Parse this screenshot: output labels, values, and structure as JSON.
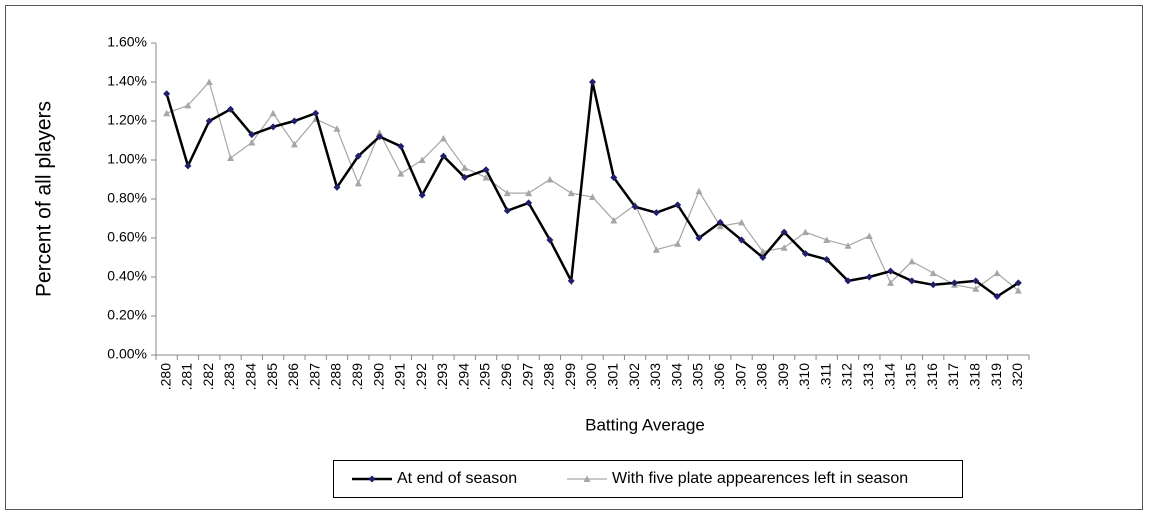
{
  "chart_data": {
    "type": "line",
    "x_label": "Batting Average",
    "y_label": "Percent of all players",
    "categories": [
      ".280",
      ".281",
      ".282",
      ".283",
      ".284",
      ".285",
      ".286",
      ".287",
      ".288",
      ".289",
      ".290",
      ".291",
      ".292",
      ".293",
      ".294",
      ".295",
      ".296",
      ".297",
      ".298",
      ".299",
      ".300",
      ".301",
      ".302",
      ".303",
      ".304",
      ".305",
      ".306",
      ".307",
      ".308",
      ".309",
      ".310",
      ".311",
      ".312",
      ".313",
      ".314",
      ".315",
      ".316",
      ".317",
      ".318",
      ".319",
      ".320"
    ],
    "series": [
      {
        "name": "At end of season",
        "color": "#000000",
        "marker_color": "#1f1f6e",
        "values": [
          1.34,
          0.97,
          1.2,
          1.26,
          1.13,
          1.17,
          1.2,
          1.24,
          0.86,
          1.02,
          1.12,
          1.07,
          0.82,
          1.02,
          0.91,
          0.95,
          0.74,
          0.78,
          0.59,
          0.38,
          1.4,
          0.91,
          0.76,
          0.73,
          0.77,
          0.6,
          0.68,
          0.59,
          0.5,
          0.63,
          0.52,
          0.49,
          0.38,
          0.4,
          0.43,
          0.38,
          0.36,
          0.37,
          0.38,
          0.3,
          0.37
        ]
      },
      {
        "name": "With five plate appearences left in season",
        "color": "#a6a6a6",
        "marker_color": "#a6a6a6",
        "values": [
          1.24,
          1.28,
          1.4,
          1.01,
          1.09,
          1.24,
          1.08,
          1.21,
          1.16,
          0.88,
          1.14,
          0.93,
          1.0,
          1.11,
          0.96,
          0.91,
          0.83,
          0.83,
          0.9,
          0.83,
          0.81,
          0.69,
          0.77,
          0.54,
          0.57,
          0.84,
          0.66,
          0.68,
          0.53,
          0.55,
          0.63,
          0.59,
          0.56,
          0.61,
          0.37,
          0.48,
          0.42,
          0.36,
          0.34,
          0.42,
          0.33
        ]
      }
    ],
    "ylim": [
      0,
      1.6
    ],
    "yticks": [
      {
        "value": 0,
        "label": "0.00%"
      },
      {
        "value": 0.2,
        "label": "0.20%"
      },
      {
        "value": 0.4,
        "label": "0.40%"
      },
      {
        "value": 0.6,
        "label": "0.60%"
      },
      {
        "value": 0.8,
        "label": "0.80%"
      },
      {
        "value": 1.0,
        "label": "1.00%"
      },
      {
        "value": 1.2,
        "label": "1.20%"
      },
      {
        "value": 1.4,
        "label": "1.40%"
      },
      {
        "value": 1.6,
        "label": "1.60%"
      }
    ],
    "grid": false,
    "legend": "bottom"
  }
}
